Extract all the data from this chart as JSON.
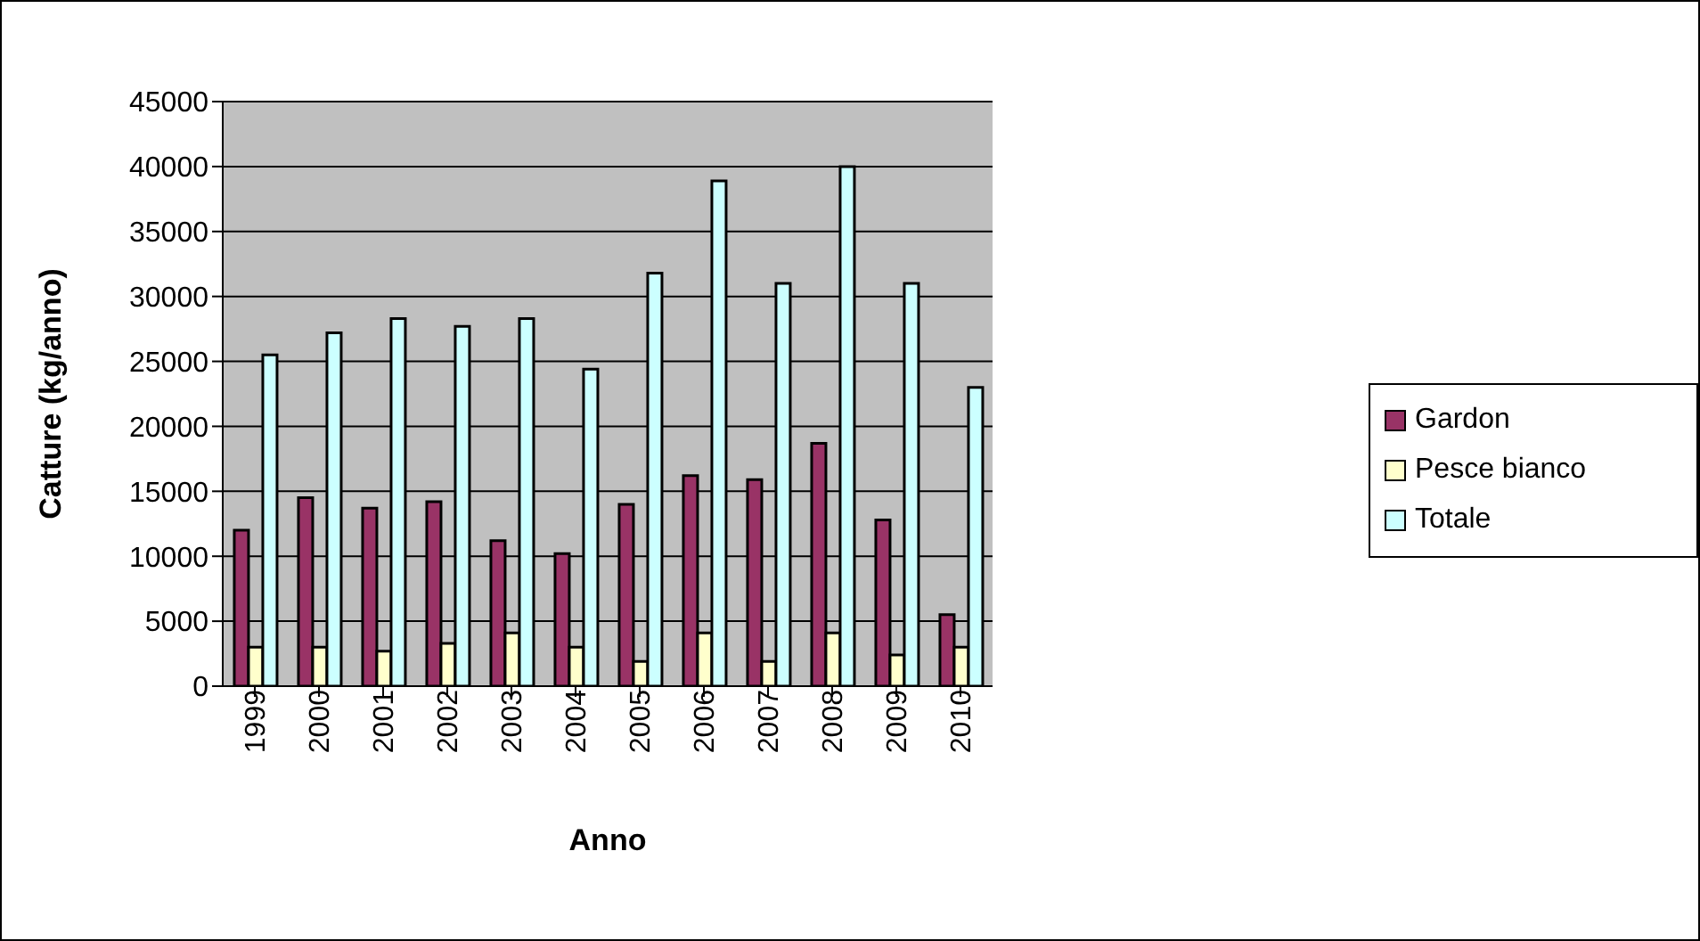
{
  "chart_data": {
    "type": "bar",
    "xlabel": "Anno",
    "ylabel": "Catture (kg/anno)",
    "categories": [
      "1999",
      "2000",
      "2001",
      "2002",
      "2003",
      "2004",
      "2005",
      "2006",
      "2007",
      "2008",
      "2009",
      "2010"
    ],
    "series": [
      {
        "name": "Gardon",
        "color": "#993366",
        "values": [
          12000,
          14500,
          13700,
          14200,
          11200,
          10200,
          14000,
          16200,
          15900,
          18700,
          12800,
          5500
        ]
      },
      {
        "name": "Pesce bianco",
        "color": "#ffffcc",
        "values": [
          3000,
          3000,
          2700,
          3300,
          4100,
          3000,
          1900,
          4100,
          1900,
          4100,
          2400,
          3000
        ]
      },
      {
        "name": "Totale",
        "color": "#ccffff",
        "values": [
          25500,
          27200,
          28300,
          27700,
          28300,
          24400,
          31800,
          38900,
          31000,
          40000,
          31000,
          23000
        ]
      }
    ],
    "ylim": [
      0,
      45000
    ],
    "yticks": [
      0,
      5000,
      10000,
      15000,
      20000,
      25000,
      30000,
      35000,
      40000,
      45000
    ],
    "grid": "y",
    "legend": "right"
  }
}
